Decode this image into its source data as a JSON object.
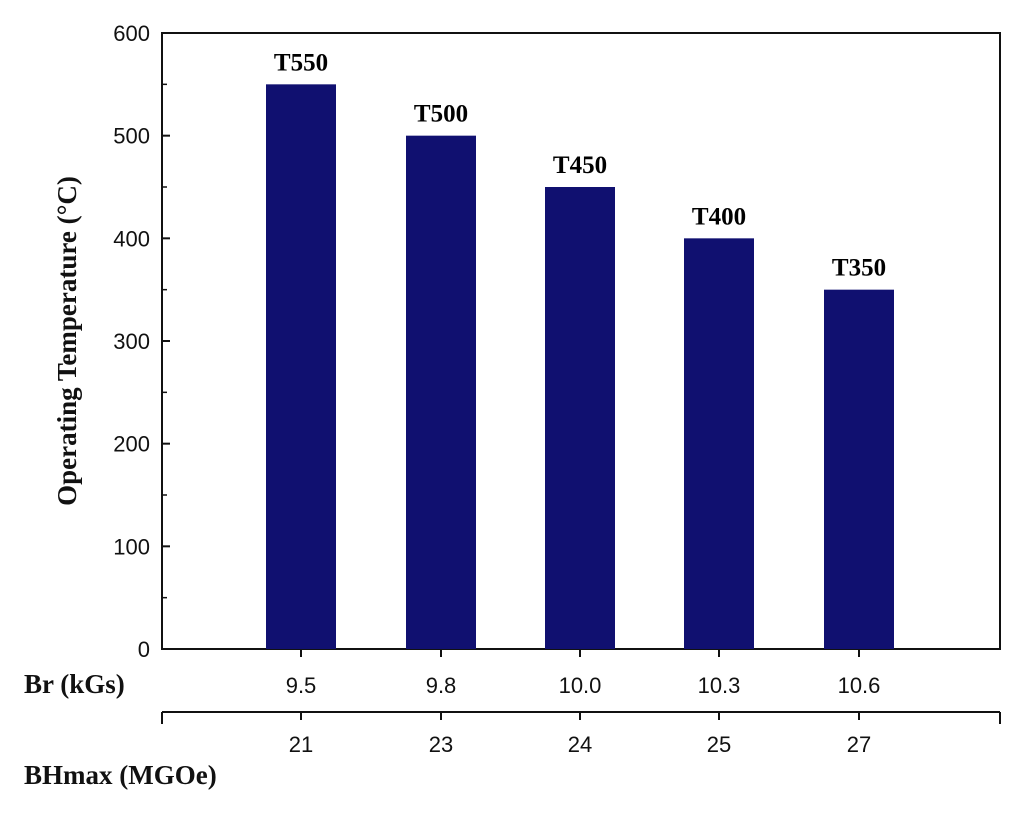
{
  "chart_data": {
    "type": "bar",
    "categories": [
      "9.5",
      "9.8",
      "10.0",
      "10.3",
      "10.6"
    ],
    "secondary_x_ticks": [
      "21",
      "23",
      "24",
      "25",
      "27"
    ],
    "values": [
      550,
      500,
      450,
      400,
      350
    ],
    "data_labels": [
      "T550",
      "T500",
      "T450",
      "T400",
      "T350"
    ],
    "title": "",
    "xlabel": "Br (kGs)",
    "x2label": "BHmax (MGOe)",
    "ylabel": "Operating Temperature (°C)",
    "ylim": [
      0,
      600
    ],
    "yticks": [
      "0",
      "100",
      "200",
      "300",
      "400",
      "500",
      "600"
    ],
    "grid": false,
    "bar_color": "#101070"
  }
}
